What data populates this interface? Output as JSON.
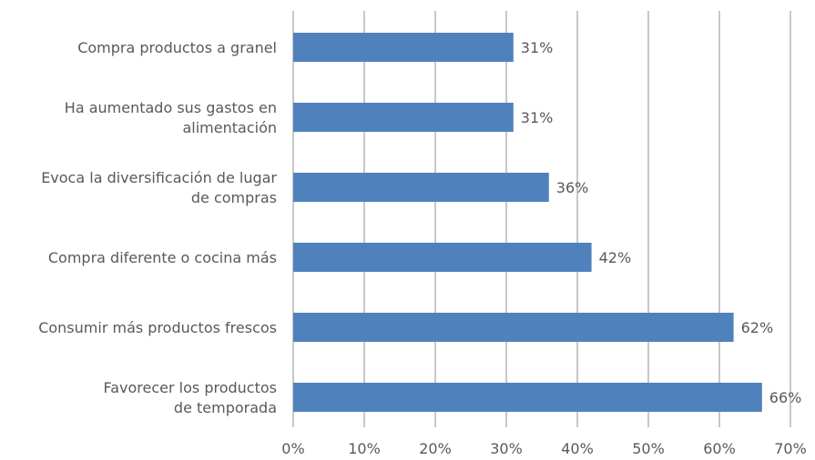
{
  "chart_data": {
    "type": "bar",
    "orientation": "horizontal",
    "categories": [
      "Compra productos a granel",
      "Ha aumentado sus gastos en alimentación",
      "Evoca la diversificación de lugar de compras",
      "Compra diferente o cocina más",
      "Consumir más productos frescos",
      "Favorecer los productos de temporada"
    ],
    "category_lines": [
      [
        "Compra productos a granel"
      ],
      [
        "Ha aumentado sus gastos en",
        "alimentación"
      ],
      [
        "Evoca la diversificación de lugar",
        "de compras"
      ],
      [
        "Compra diferente o cocina más"
      ],
      [
        "Consumir más productos frescos"
      ],
      [
        "Favorecer los productos",
        "de temporada"
      ]
    ],
    "values": [
      31,
      31,
      36,
      42,
      62,
      66
    ],
    "data_labels": [
      "31%",
      "31%",
      "36%",
      "42%",
      "62%",
      "66%"
    ],
    "xlim": [
      0,
      70
    ],
    "x_ticks": [
      0,
      10,
      20,
      30,
      40,
      50,
      60,
      70
    ],
    "x_tick_labels": [
      "0%",
      "10%",
      "20%",
      "30%",
      "40%",
      "50%",
      "60%",
      "70%"
    ],
    "grid": "vertical",
    "bar_color": "#4f81bd",
    "grid_color": "#c8c8c8"
  }
}
